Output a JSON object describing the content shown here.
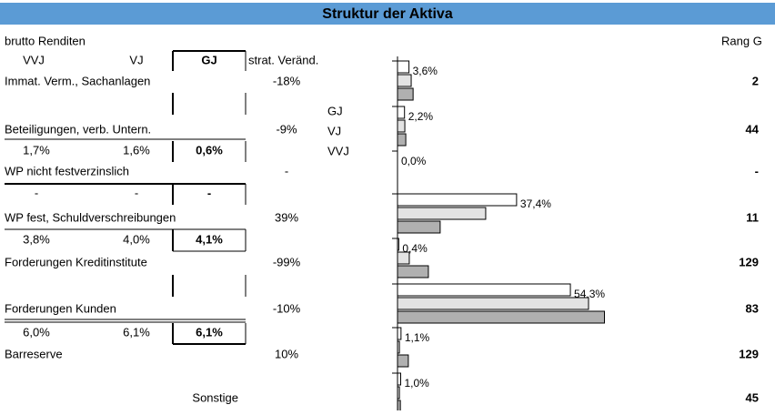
{
  "title": "Struktur der Aktiva",
  "table": {
    "caption": "brutto Renditen",
    "columns": [
      "VVJ",
      "VJ",
      "GJ",
      "strat. Veränd."
    ],
    "rank_header": "Rang G",
    "categories": [
      {
        "label": "Immat. Verm., Sachanlagen",
        "change": "-18%",
        "rank": "2"
      },
      {
        "label": "Beteiligungen, verb. Untern.",
        "change": "-9%",
        "rank": "44"
      },
      {
        "label": "WP nicht festverzinslich",
        "change": "-",
        "rank": "-"
      },
      {
        "label": "WP fest, Schuldverschreibungen",
        "change": "39%",
        "rank": "11"
      },
      {
        "label": "Forderungen Kreditinstitute",
        "change": "-99%",
        "rank": "129"
      },
      {
        "label": "Forderungen Kunden",
        "change": "-10%",
        "rank": "83"
      },
      {
        "label": "Barreserve",
        "change": "10%",
        "rank": "129"
      },
      {
        "label": "Sonstige",
        "rank": "45"
      }
    ],
    "returns": [
      [
        "1,7%",
        "1,6%",
        "0,6%"
      ],
      [
        "-",
        "-",
        "-"
      ],
      [
        "3,8%",
        "4,0%",
        "4,1%"
      ],
      [
        "6,0%",
        "6,1%",
        "6,1%"
      ]
    ]
  },
  "chart_data": {
    "type": "bar",
    "orientation": "horizontal",
    "xlim": [
      0,
      70
    ],
    "series": [
      {
        "name": "GJ",
        "color": "#ffffff",
        "values": [
          3.6,
          2.2,
          0.0,
          37.4,
          0.4,
          54.3,
          1.1,
          1.0
        ],
        "value_labels": [
          "3,6%",
          "2,2%",
          "0,0%",
          "37,4%",
          "0,4%",
          "54,3%",
          "1,1%",
          "1,0%"
        ]
      },
      {
        "name": "VJ",
        "color": "#e3e3e3",
        "values": [
          4.3,
          2.3,
          0.0,
          27.7,
          3.7,
          60.0,
          0.6,
          0.6
        ]
      },
      {
        "name": "VVJ",
        "color": "#b0b0b0",
        "values": [
          4.9,
          2.6,
          0.0,
          13.4,
          9.7,
          65.0,
          3.4,
          0.9
        ]
      }
    ]
  }
}
